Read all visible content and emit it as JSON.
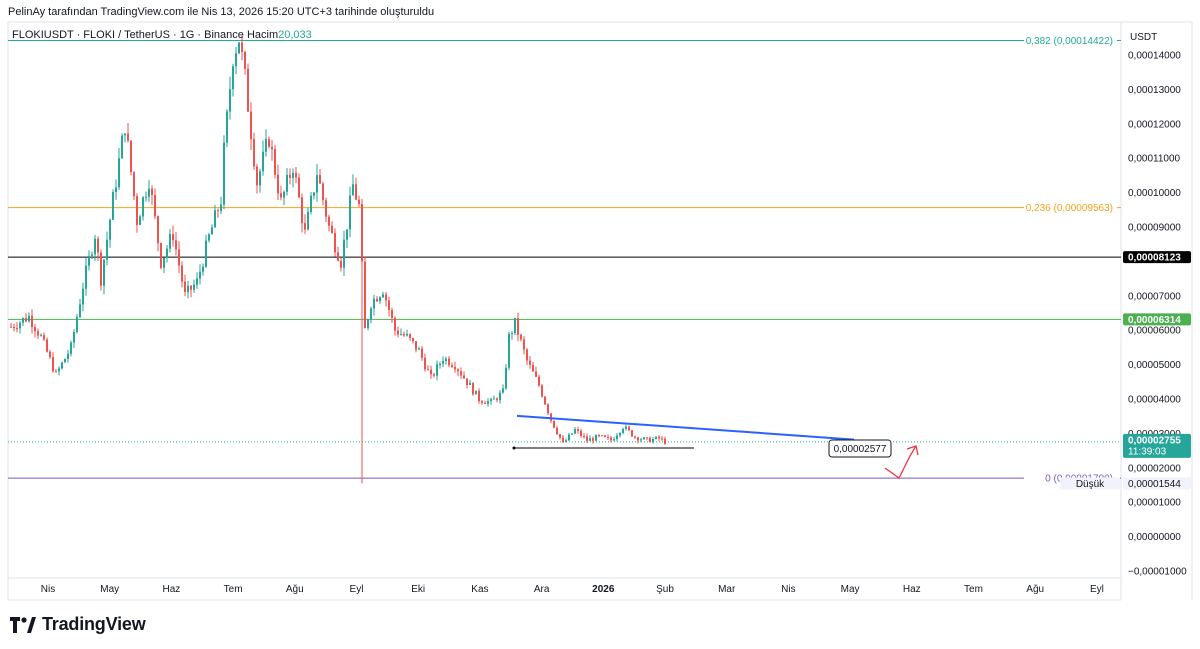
{
  "header": {
    "published_by": "PelinAy tarafından TradingView.com ile Nis 13, 2026 15:20 UTC+3 tarihinde oluşturuldu",
    "symbol_line": "FLOKIUSDT · FLOKI / TetherUS · 1G · Binance",
    "volume_label": "Hacim",
    "volume_value": "20,033"
  },
  "brand": {
    "name": "TradingView"
  },
  "colors": {
    "up": "#26a69a",
    "down": "#ef5350",
    "fib_0382": "#22ab94",
    "fib_0236": "#f7a21b",
    "fib_0": "#7e57c2",
    "resistance": "#000000",
    "support": "#4caf50",
    "trendline": "#2962ff",
    "arrow": "#f23645"
  },
  "chart_data": {
    "type": "candlestick",
    "currency": "USDT",
    "ylim": [
      -1e-05,
      0.000145
    ],
    "y_ticks": [
      "0,00014000",
      "0,00013000",
      "0,00012000",
      "0,00011000",
      "0,00010000",
      "0,00009000",
      "0,00007000",
      "0,00006000",
      "0,00005000",
      "0,00004000",
      "0,00003000",
      "0,00002000",
      "0,00001000",
      "0,00000000",
      "−0,00001000"
    ],
    "y_tick_values": [
      0.00014,
      0.00013,
      0.00012,
      0.00011,
      0.0001,
      9e-05,
      7e-05,
      6e-05,
      5e-05,
      4e-05,
      3e-05,
      2e-05,
      1e-05,
      0,
      -1e-05
    ],
    "x_ticks": [
      "Nis",
      "May",
      "Haz",
      "Tem",
      "Ağu",
      "Eyl",
      "Eki",
      "Kas",
      "Ara",
      "2026",
      "Şub",
      "Mar",
      "Nis",
      "May",
      "Haz",
      "Tem",
      "Ağu",
      "Eyl"
    ],
    "x_bold": [
      "2026"
    ],
    "horizontal_levels": [
      {
        "label": "0,382 (0,00014422)",
        "value": 0.00014422,
        "color": "#22ab94"
      },
      {
        "label": "0,236 (0,00009563)",
        "value": 9.563e-05,
        "color": "#f7a21b"
      },
      {
        "label": "0 (0,00001700)",
        "value": 1.7e-05,
        "color": "#7e57c2"
      },
      {
        "label": "0,00008123",
        "value": 8.123e-05,
        "color": "#000000"
      },
      {
        "label": "0,00006314",
        "value": 6.314e-05,
        "color": "#4caf50"
      }
    ],
    "price_tags": [
      {
        "label": "0,00008123",
        "value": 8.123e-05,
        "bg": "#000000",
        "fg": "#ffffff"
      },
      {
        "label": "0,00006314",
        "value": 6.314e-05,
        "bg": "#4caf50",
        "fg": "#ffffff"
      },
      {
        "label": "0,00002755",
        "value": 2.755e-05,
        "bg": "#26a69a",
        "fg": "#ffffff",
        "sub": "11:39:03"
      }
    ],
    "low_tag": {
      "label": "Düşük",
      "value_label": "0,00001544",
      "value": 1.544e-05
    },
    "last_price": 2.755e-05,
    "annotation_value": "0,00002577",
    "annotation_level": 2.577e-05,
    "path": [
      [
        0,
        6.1e-05
      ],
      [
        6,
        6.4e-05
      ],
      [
        10,
        5.8e-05
      ],
      [
        15,
        4.7e-05
      ],
      [
        20,
        5.5e-05
      ],
      [
        24,
        7.3e-05
      ],
      [
        28,
        8.8e-05
      ],
      [
        30,
        7.5e-05
      ],
      [
        34,
        9.8e-05
      ],
      [
        38,
        0.00012
      ],
      [
        42,
        9.2e-05
      ],
      [
        46,
        0.000104
      ],
      [
        50,
        8e-05
      ],
      [
        54,
        8.8e-05
      ],
      [
        58,
        7e-05
      ],
      [
        62,
        7.4e-05
      ],
      [
        66,
        8.7e-05
      ],
      [
        70,
        9.8e-05
      ],
      [
        71,
        0.000112
      ],
      [
        74,
        0.00014
      ],
      [
        76,
        0.000145
      ],
      [
        78,
        0.000133
      ],
      [
        82,
        0.000103
      ],
      [
        86,
        0.000116
      ],
      [
        90,
        9.7e-05
      ],
      [
        94,
        0.000108
      ],
      [
        98,
        8.8e-05
      ],
      [
        102,
        0.000106
      ],
      [
        106,
        9e-05
      ],
      [
        110,
        8e-05
      ],
      [
        114,
        0.000102
      ],
      [
        116,
        9.6e-05
      ],
      [
        118,
        6e-05
      ],
      [
        120,
        6.8e-05
      ],
      [
        124,
        7.2e-05
      ],
      [
        128,
        6e-05
      ],
      [
        132,
        5.8e-05
      ],
      [
        136,
        5.4e-05
      ],
      [
        140,
        4.6e-05
      ],
      [
        144,
        5.2e-05
      ],
      [
        148,
        5e-05
      ],
      [
        152,
        4.5e-05
      ],
      [
        156,
        4e-05
      ],
      [
        160,
        3.9e-05
      ],
      [
        164,
        4.2e-05
      ],
      [
        166,
        5.8e-05
      ],
      [
        168,
        6.2e-05
      ],
      [
        172,
        5.1e-05
      ],
      [
        176,
        4.4e-05
      ],
      [
        180,
        3.4e-05
      ],
      [
        184,
        2.7e-05
      ],
      [
        188,
        3.1e-05
      ],
      [
        192,
        2.8e-05
      ],
      [
        196,
        2.9e-05
      ],
      [
        200,
        2.8e-05
      ],
      [
        204,
        3.2e-05
      ],
      [
        208,
        2.9e-05
      ],
      [
        212,
        2.8e-05
      ],
      [
        216,
        2.85e-05
      ],
      [
        218,
        2.755e-05
      ]
    ],
    "spike_low": {
      "day": 117,
      "value": 1.544e-05
    },
    "trendline": {
      "from": [
        169,
        3.51e-05
      ],
      "to": [
        228,
        2.82e-05
      ]
    },
    "support_segment": {
      "from": [
        168,
        2.577e-05
      ],
      "to": [
        228,
        2.577e-05
      ]
    }
  }
}
